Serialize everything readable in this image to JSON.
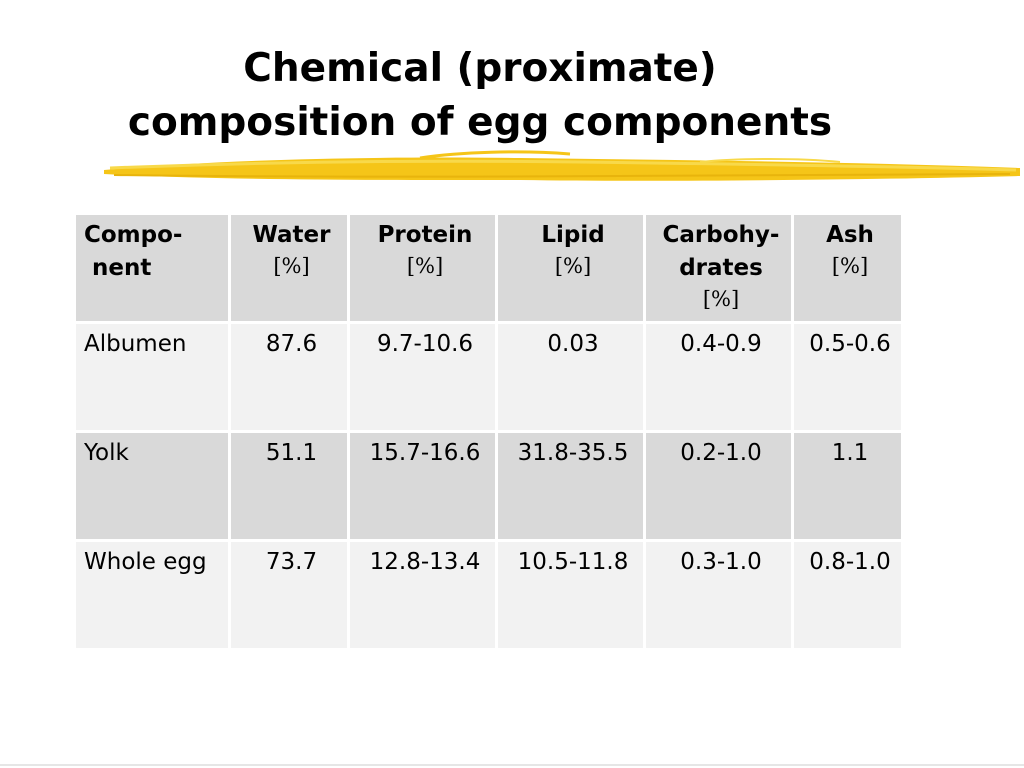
{
  "title": {
    "line1": "Chemical (proximate)",
    "line2": "composition of egg components"
  },
  "table": {
    "headers": [
      {
        "lines": [
          "Compo-",
          " nent"
        ],
        "unit": ""
      },
      {
        "lines": [
          "Water"
        ],
        "unit": "[%]"
      },
      {
        "lines": [
          "Protein"
        ],
        "unit": "[%]"
      },
      {
        "lines": [
          "Lipid"
        ],
        "unit": "[%]"
      },
      {
        "lines": [
          "Carbohy-",
          "drates"
        ],
        "unit": "[%]"
      },
      {
        "lines": [
          "Ash"
        ],
        "unit": "[%]"
      }
    ],
    "rows": [
      {
        "component": "Albumen",
        "water": "87.6",
        "protein": "9.7-10.6",
        "lipid": "0.03",
        "carbohydrates": "0.4-0.9",
        "ash": "0.5-0.6"
      },
      {
        "component": "Yolk",
        "water": "51.1",
        "protein": "15.7-16.6",
        "lipid": "31.8-35.5",
        "carbohydrates": "0.2-1.0",
        "ash": "1.1"
      },
      {
        "component": "Whole egg",
        "water": "73.7",
        "protein": "12.8-13.4",
        "lipid": "10.5-11.8",
        "carbohydrates": "0.3-1.0",
        "ash": "0.8-1.0"
      }
    ]
  },
  "colors": {
    "accent": "#f5c518",
    "header_bg": "#d9d9d9",
    "row_light_bg": "#f2f2f2",
    "row_dark_bg": "#d9d9d9"
  }
}
